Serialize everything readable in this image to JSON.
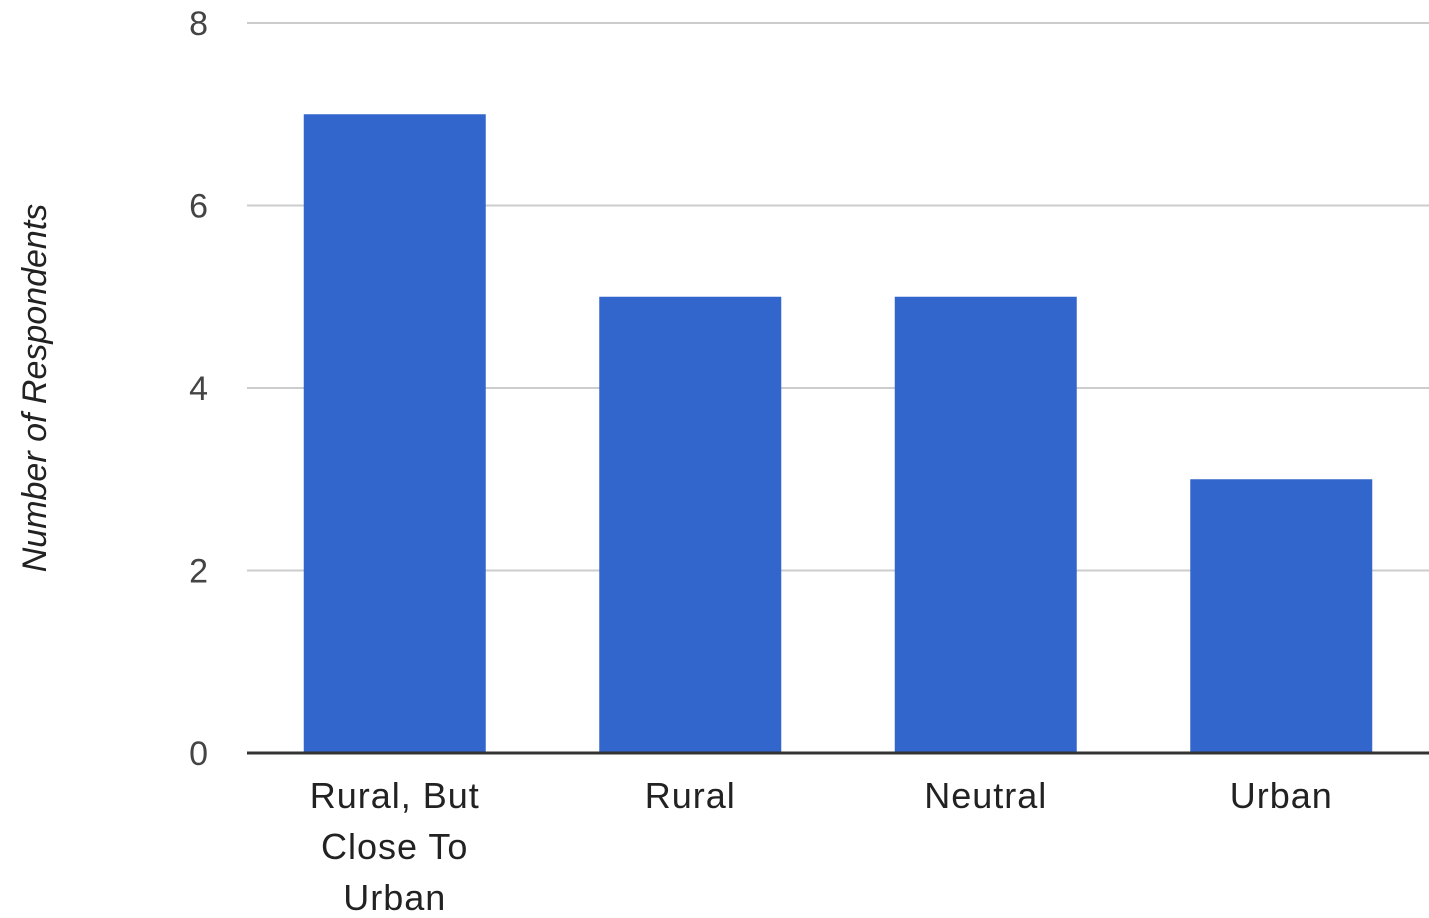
{
  "chart_data": {
    "type": "bar",
    "categories": [
      [
        "Rural, But",
        "Close To",
        "Urban"
      ],
      [
        "Rural"
      ],
      [
        "Neutral"
      ],
      [
        "Urban"
      ]
    ],
    "values": [
      7,
      5,
      5,
      3
    ],
    "title": "",
    "xlabel": "",
    "ylabel": "Number of Respondents",
    "ylim": [
      0,
      8
    ],
    "yticks": [
      0,
      2,
      4,
      6,
      8
    ],
    "grid": true,
    "legend": "none",
    "bar_color": "#3366cc",
    "gridline_color": "#cccccc",
    "baseline_color": "#333333"
  }
}
